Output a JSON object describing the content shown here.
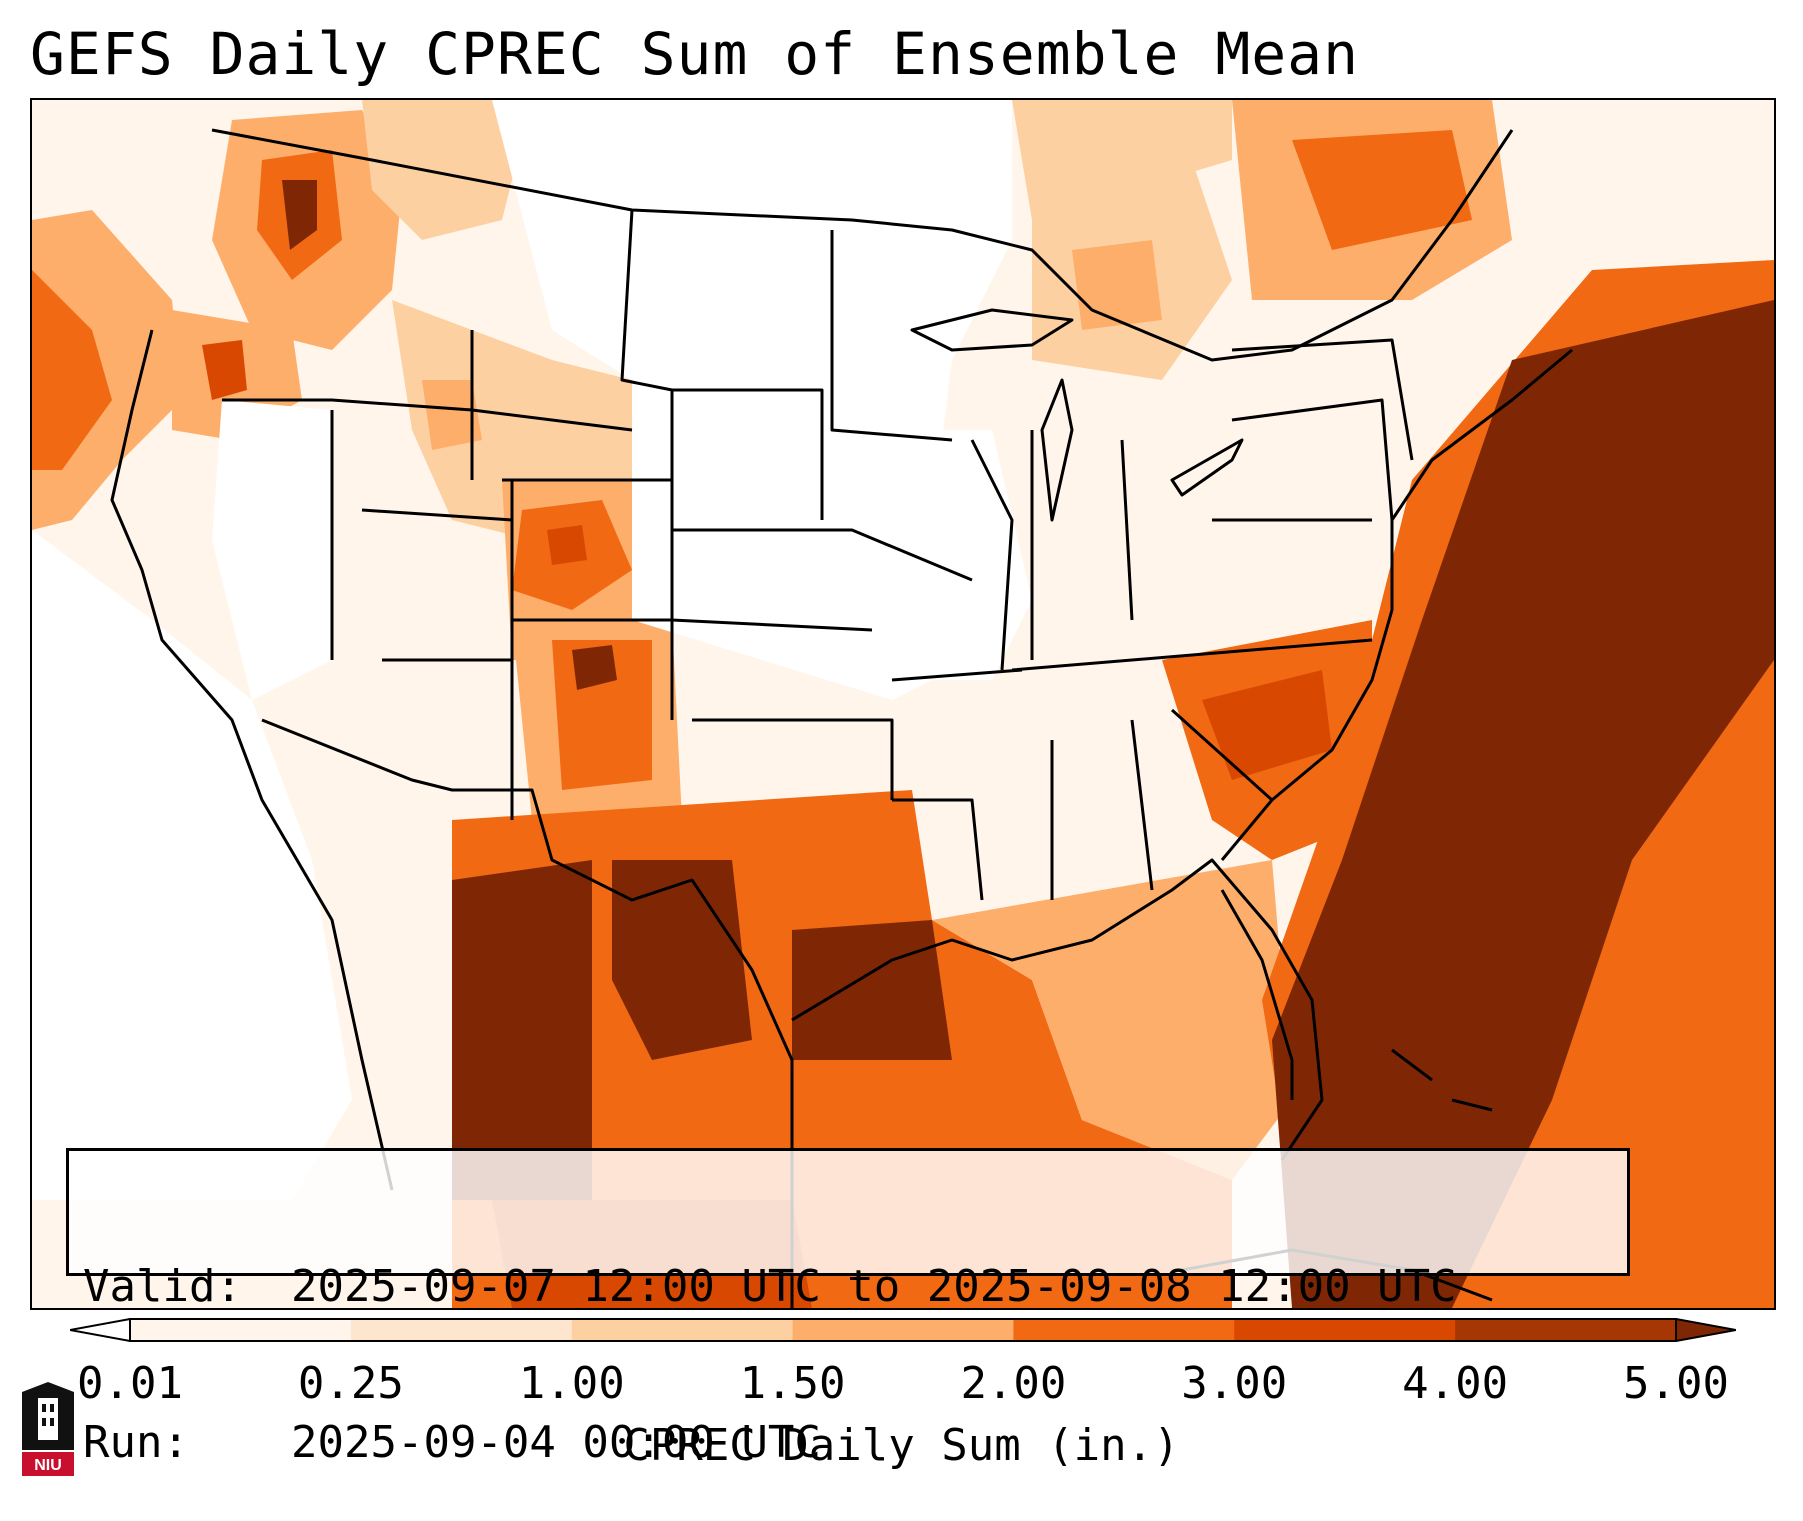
{
  "title": "GEFS Daily CPREC Sum of Ensemble Mean",
  "info": {
    "valid_label": "Valid:",
    "valid_value": "2025-09-07 12:00 UTC to 2025-09-08 12:00 UTC",
    "run_label": "Run:",
    "run_value": "2025-09-04 00:00 UTC"
  },
  "colorbar": {
    "label": "CPREC Daily Sum (in.)",
    "ticks": [
      "0.01",
      "0.25",
      "1.00",
      "1.50",
      "2.00",
      "3.00",
      "4.00",
      "5.00"
    ],
    "colors": [
      "#fff5eb",
      "#fee6ce",
      "#fdd0a2",
      "#fdae6b",
      "#f16913",
      "#d94801",
      "#a63603"
    ],
    "under_color": "#ffffff",
    "over_color": "#7f2704"
  },
  "map": {
    "precip_shades": {
      "light": "#fff5eb",
      "low": "#fee6ce",
      "mid": "#fdd0a2",
      "moderate": "#fdae6b",
      "high": "#f16913",
      "heavy": "#d94801",
      "extreme": "#7f2704"
    },
    "boundary_color": "#000000"
  },
  "logo": {
    "text": "NIU",
    "color": "#c8102e"
  }
}
